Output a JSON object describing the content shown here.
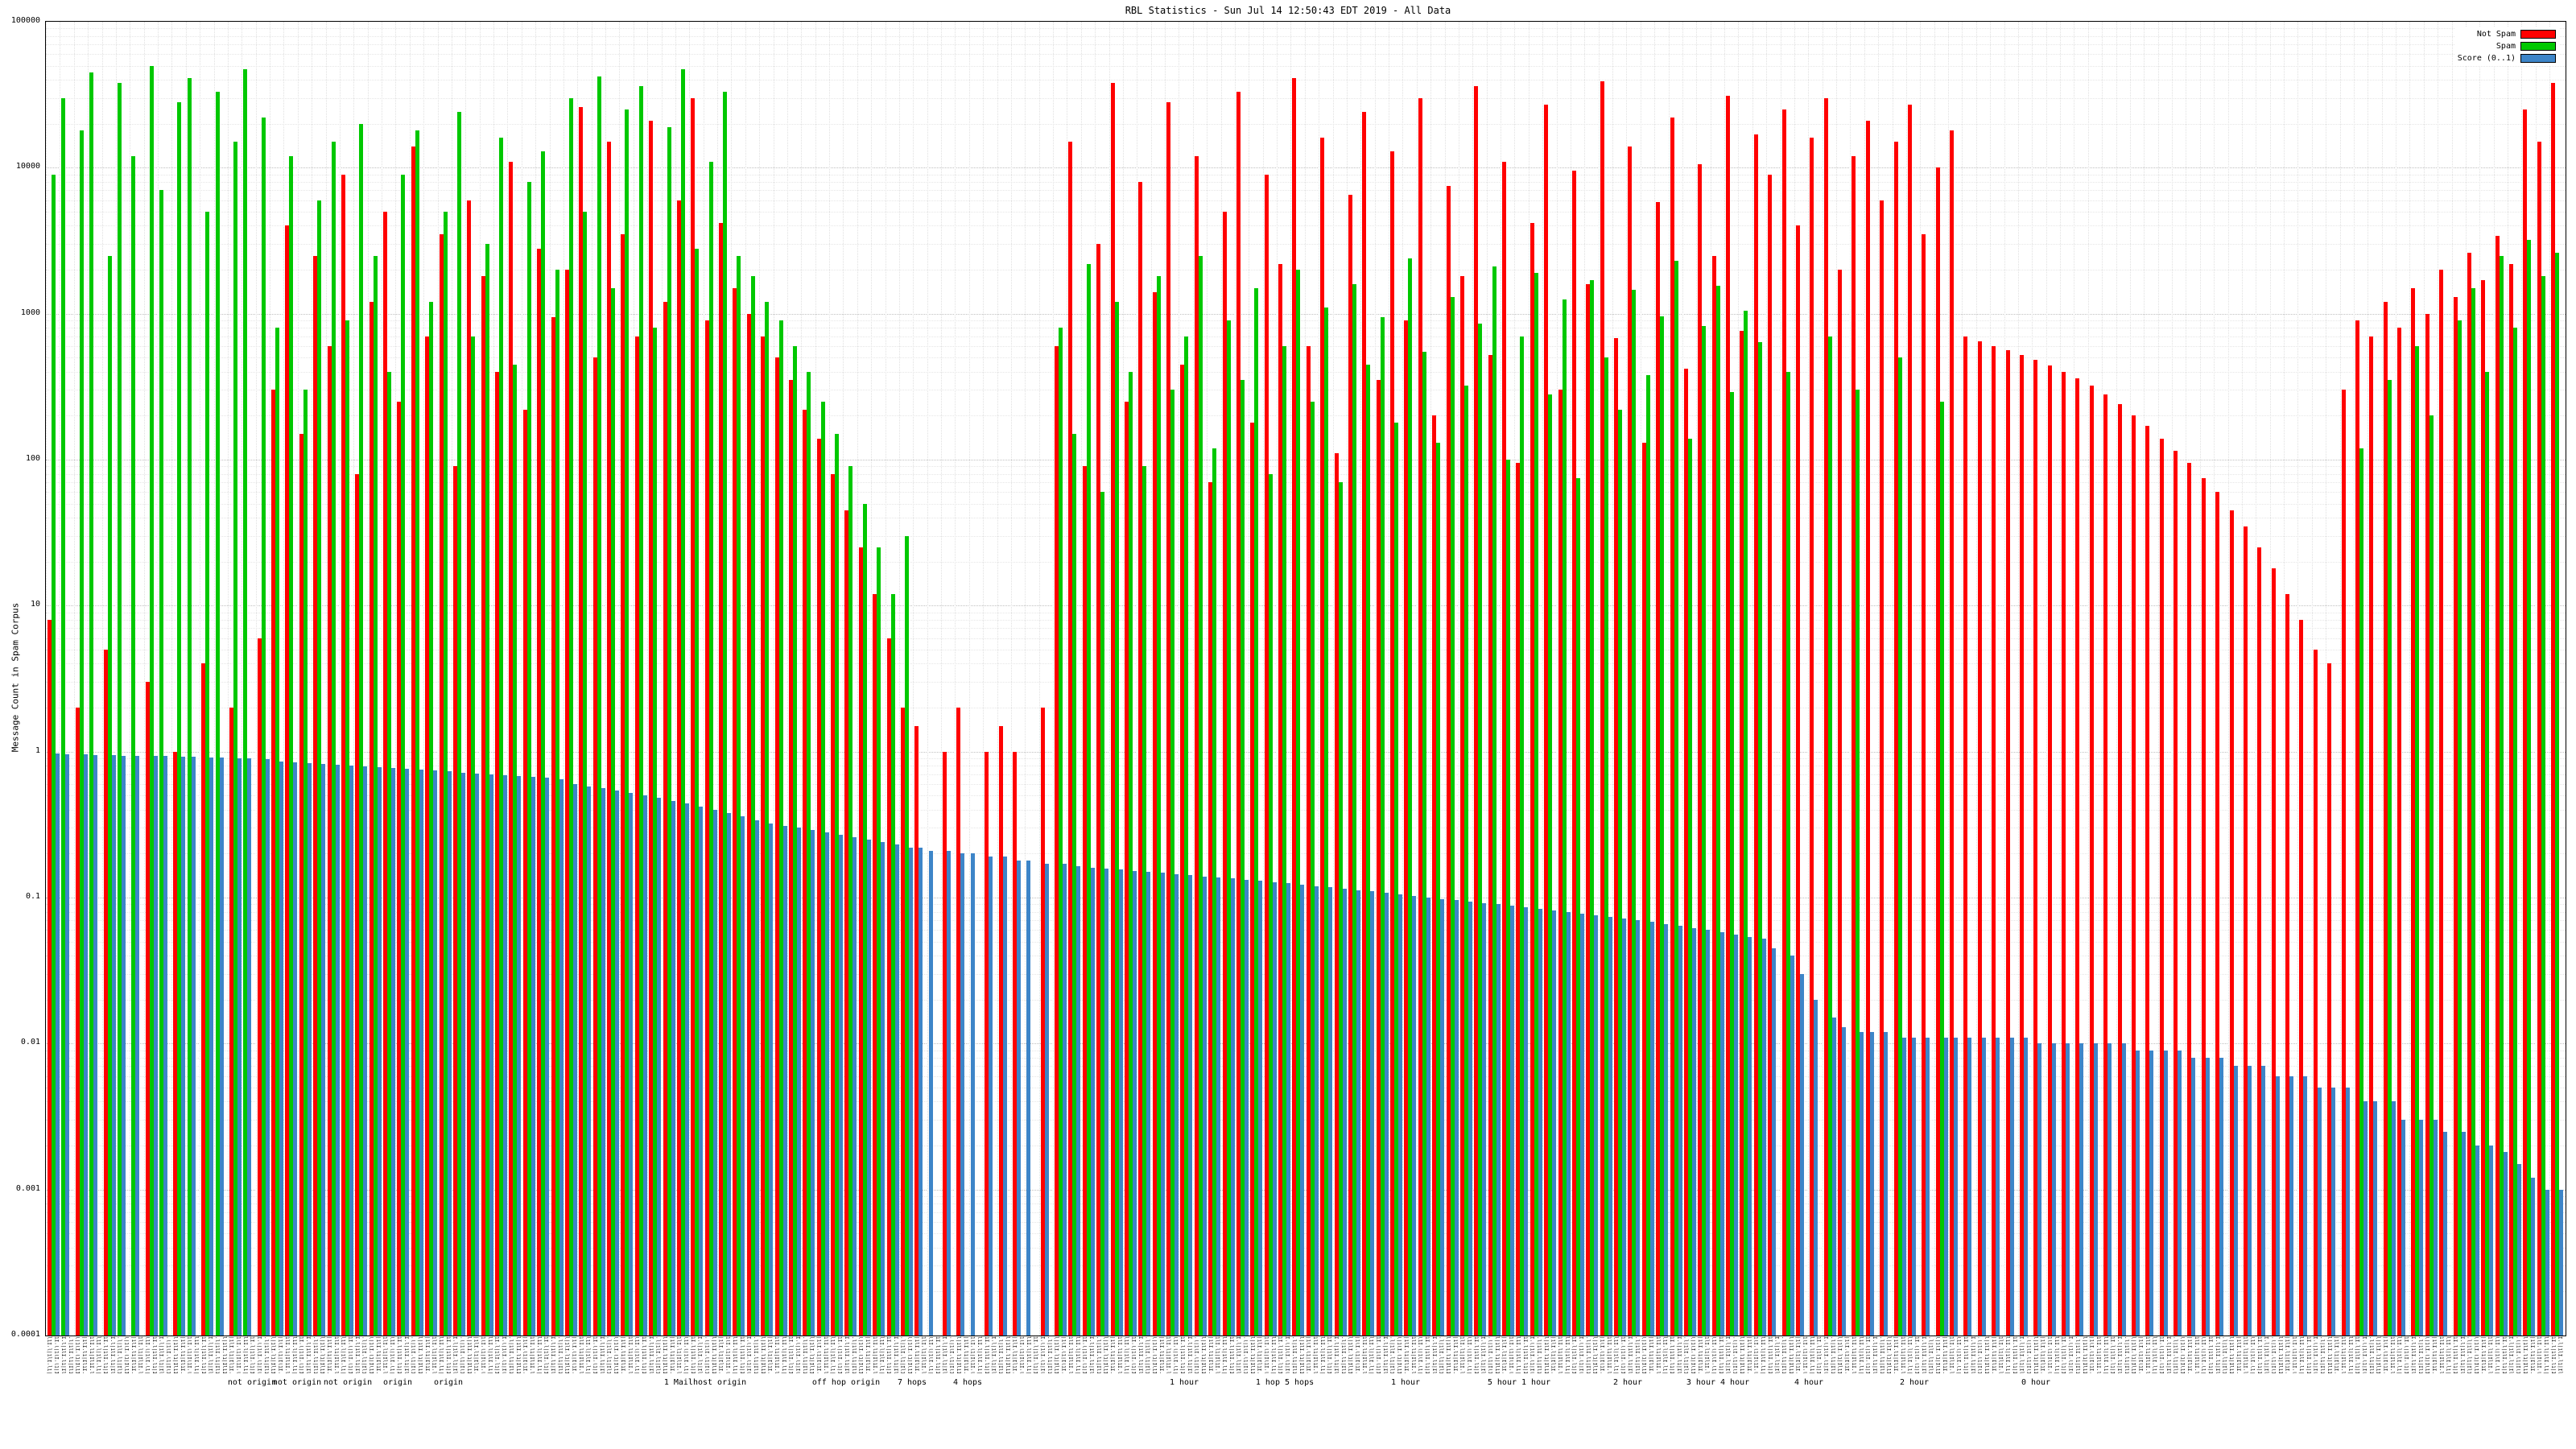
{
  "title": "RBL Statistics - Sun Jul 14 12:50:43 EDT 2019 - All Data",
  "y_axis": {
    "label": "Message Count in Spam Corpus",
    "scale": "log",
    "min": 0.0001,
    "max": 100000,
    "tick_labels": [
      "100000",
      "10000",
      "1000",
      "100",
      "10",
      "1",
      "0.1",
      "0.01",
      "0.001",
      "0.0001"
    ]
  },
  "x_axis": {
    "dense_tick_pattern": "l1I.l|1lI.l1|I",
    "group_labels": [
      {
        "text": "not origin",
        "pos": 0.082
      },
      {
        "text": "not origin",
        "pos": 0.1
      },
      {
        "text": "not origin",
        "pos": 0.12
      },
      {
        "text": "origin",
        "pos": 0.14
      },
      {
        "text": "origin",
        "pos": 0.16
      },
      {
        "text": "1 Mailhost origin",
        "pos": 0.262
      },
      {
        "text": "off hop origin",
        "pos": 0.318
      },
      {
        "text": "7 hops",
        "pos": 0.344
      },
      {
        "text": "4 hops",
        "pos": 0.366
      },
      {
        "text": "1 hour",
        "pos": 0.452
      },
      {
        "text": "1 hop 5 hops",
        "pos": 0.492
      },
      {
        "text": "1 hour",
        "pos": 0.54
      },
      {
        "text": "5 hour 1 hour",
        "pos": 0.585
      },
      {
        "text": "2 hour",
        "pos": 0.628
      },
      {
        "text": "3 hour 4 hour",
        "pos": 0.664
      },
      {
        "text": "4 hour",
        "pos": 0.7
      },
      {
        "text": "2 hour",
        "pos": 0.742
      },
      {
        "text": "0 hour",
        "pos": 0.79
      }
    ]
  },
  "legend": [
    {
      "label": "Not Spam",
      "color": "#ff0000"
    },
    {
      "label": "Spam",
      "color": "#00c800"
    },
    {
      "label": "Score (0..1)",
      "color": "#3d85c8"
    }
  ],
  "chart_data": {
    "type": "bar",
    "title": "RBL Statistics - Sun Jul 14 12:50:43 EDT 2019 - All Data",
    "xlabel": "",
    "ylabel": "Message Count in Spam Corpus",
    "yscale": "log",
    "ylim": [
      0.0001,
      100000
    ],
    "n_groups": 180,
    "categories": [],
    "series": [
      {
        "name": "Not Spam",
        "color": "#ff0000",
        "values": [
          8,
          0,
          2,
          0,
          5,
          0,
          0,
          3,
          0,
          1,
          0,
          4,
          0,
          2,
          0,
          6,
          300,
          4000,
          150,
          2500,
          600,
          9000,
          80,
          1200,
          5000,
          250,
          14000,
          700,
          3500,
          90,
          6000,
          1800,
          400,
          11000,
          220,
          2800,
          950,
          2000,
          26000,
          500,
          15000,
          3500,
          700,
          21000,
          1200,
          6000,
          30000,
          900,
          4200,
          1500,
          1000,
          700,
          500,
          350,
          220,
          140,
          80,
          45,
          25,
          12,
          6,
          2,
          1.5,
          0,
          1,
          2,
          0,
          1,
          1.5,
          1,
          0,
          2,
          600,
          15000,
          90,
          3000,
          38000,
          250,
          8000,
          1400,
          28000,
          450,
          12000,
          70,
          5000,
          33000,
          180,
          9000,
          2200,
          41000,
          600,
          16000,
          110,
          6500,
          24000,
          350,
          13000,
          900,
          30000,
          200,
          7500,
          1800,
          36000,
          520,
          11000,
          95,
          4200,
          27000,
          300,
          9500,
          1600,
          39000,
          680,
          14000,
          130,
          5800,
          22000,
          420,
          10500,
          2500,
          31000,
          760,
          17000,
          9000,
          25000,
          4000,
          16000,
          30000,
          2000,
          12000,
          21000,
          6000,
          15000,
          27000,
          3500,
          10000,
          18000,
          700,
          650,
          600,
          560,
          520,
          480,
          440,
          400,
          360,
          320,
          280,
          240,
          200,
          170,
          140,
          115,
          95,
          75,
          60,
          45,
          35,
          25,
          18,
          12,
          8,
          5,
          4,
          300,
          900,
          700,
          1200,
          800,
          1500,
          1000,
          2000,
          1300,
          2600,
          1700,
          3400,
          2200,
          25000,
          15000,
          38000
        ]
      },
      {
        "name": "Spam",
        "color": "#00c800",
        "values": [
          9000,
          30000,
          18000,
          45000,
          2500,
          38000,
          12000,
          50000,
          7000,
          28000,
          41000,
          5000,
          33000,
          15000,
          47000,
          22000,
          800,
          12000,
          300,
          6000,
          15000,
          900,
          20000,
          2500,
          400,
          9000,
          18000,
          1200,
          5000,
          24000,
          700,
          3000,
          16000,
          450,
          8000,
          13000,
          2000,
          30000,
          5000,
          42000,
          1500,
          25000,
          36000,
          800,
          19000,
          47000,
          2800,
          11000,
          33000,
          2500,
          1800,
          1200,
          900,
          600,
          400,
          250,
          150,
          90,
          50,
          25,
          12,
          30,
          0,
          0,
          0,
          0,
          0,
          0,
          0,
          0,
          0,
          0,
          800,
          150,
          2200,
          60,
          1200,
          400,
          90,
          1800,
          300,
          700,
          2500,
          120,
          900,
          350,
          1500,
          80,
          600,
          2000,
          250,
          1100,
          70,
          1600,
          450,
          950,
          180,
          2400,
          550,
          130,
          1300,
          320,
          850,
          2100,
          100,
          700,
          1900,
          280,
          1250,
          75,
          1700,
          500,
          220,
          1450,
          380,
          960,
          2300,
          140,
          820,
          1550,
          290,
          1050,
          640,
          0,
          400,
          0,
          0,
          700,
          0,
          300,
          0,
          0,
          500,
          0,
          0,
          250,
          0,
          0,
          0,
          0,
          0,
          0,
          0,
          0,
          0,
          0,
          0,
          0,
          0,
          0,
          0,
          0,
          0,
          0,
          0,
          0,
          0,
          0,
          0,
          0,
          0,
          0,
          0,
          0,
          0,
          120,
          0,
          350,
          0,
          600,
          200,
          0,
          900,
          1500,
          400,
          2500,
          800,
          3200,
          1800,
          2600
        ]
      },
      {
        "name": "Score (0..1)",
        "color": "#3d85c8",
        "values": [
          0.97,
          0.96,
          0.96,
          0.95,
          0.95,
          0.94,
          0.94,
          0.93,
          0.93,
          0.92,
          0.92,
          0.91,
          0.91,
          0.9,
          0.9,
          0.89,
          0.85,
          0.84,
          0.83,
          0.82,
          0.81,
          0.8,
          0.79,
          0.78,
          0.77,
          0.76,
          0.75,
          0.74,
          0.73,
          0.72,
          0.71,
          0.7,
          0.69,
          0.68,
          0.67,
          0.66,
          0.65,
          0.6,
          0.58,
          0.56,
          0.54,
          0.52,
          0.5,
          0.48,
          0.46,
          0.44,
          0.42,
          0.4,
          0.38,
          0.36,
          0.34,
          0.32,
          0.31,
          0.3,
          0.29,
          0.28,
          0.27,
          0.26,
          0.25,
          0.24,
          0.23,
          0.22,
          0.22,
          0.21,
          0.21,
          0.2,
          0.2,
          0.19,
          0.19,
          0.18,
          0.18,
          0.17,
          0.17,
          0.165,
          0.16,
          0.158,
          0.155,
          0.152,
          0.15,
          0.148,
          0.145,
          0.142,
          0.14,
          0.138,
          0.135,
          0.132,
          0.13,
          0.128,
          0.125,
          0.122,
          0.12,
          0.118,
          0.115,
          0.112,
          0.11,
          0.108,
          0.105,
          0.103,
          0.1,
          0.098,
          0.096,
          0.094,
          0.092,
          0.09,
          0.088,
          0.086,
          0.084,
          0.082,
          0.08,
          0.078,
          0.076,
          0.074,
          0.072,
          0.07,
          0.068,
          0.066,
          0.064,
          0.062,
          0.06,
          0.058,
          0.056,
          0.054,
          0.052,
          0.045,
          0.04,
          0.03,
          0.02,
          0.015,
          0.013,
          0.012,
          0.012,
          0.012,
          0.011,
          0.011,
          0.011,
          0.011,
          0.011,
          0.011,
          0.011,
          0.011,
          0.011,
          0.011,
          0.01,
          0.01,
          0.01,
          0.01,
          0.01,
          0.01,
          0.01,
          0.009,
          0.009,
          0.009,
          0.009,
          0.008,
          0.008,
          0.008,
          0.007,
          0.007,
          0.007,
          0.006,
          0.006,
          0.006,
          0.005,
          0.005,
          0.005,
          0.004,
          0.004,
          0.004,
          0.003,
          0.003,
          0.003,
          0.0025,
          0.0025,
          0.002,
          0.002,
          0.0018,
          0.0015,
          0.0012,
          0.001,
          0.001
        ]
      }
    ]
  }
}
